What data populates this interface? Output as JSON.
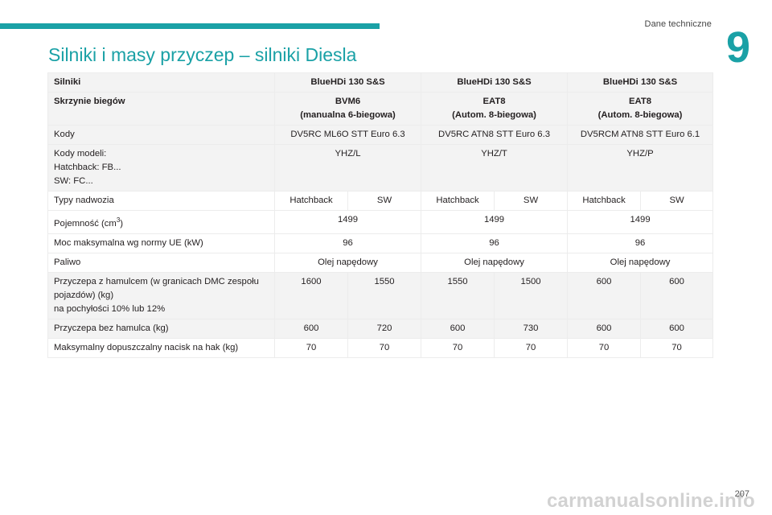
{
  "header": {
    "section_label": "Dane techniczne",
    "chapter_number": "9",
    "accent_color": "#1aa1a6"
  },
  "title": "Silniki i masy przyczep – silniki Diesla",
  "table": {
    "engines_label": "Silniki",
    "engines": [
      "BlueHDi 130 S&S",
      "BlueHDi 130 S&S",
      "BlueHDi 130 S&S"
    ],
    "gearbox_label": "Skrzynie biegów",
    "gearboxes": [
      {
        "name": "BVM6",
        "desc": "(manualna 6-biegowa)"
      },
      {
        "name": "EAT8",
        "desc": "(Autom. 8-biegowa)"
      },
      {
        "name": "EAT8",
        "desc": "(Autom. 8-biegowa)"
      }
    ],
    "codes_label": "Kody",
    "codes": [
      "DV5RC ML6O STT Euro 6.3",
      "DV5RC ATN8 STT Euro 6.3",
      "DV5RCM ATN8 STT Euro 6.1"
    ],
    "model_codes_label": [
      "Kody modeli:",
      "Hatchback: FB...",
      "SW: FC..."
    ],
    "model_codes": [
      "YHZ/L",
      "YHZ/T",
      "YHZ/P"
    ],
    "body_types_label": "Typy nadwozia",
    "body_types": [
      "Hatchback",
      "SW",
      "Hatchback",
      "SW",
      "Hatchback",
      "SW"
    ],
    "capacity_label": "Pojemność (cm",
    "capacity_sup": "3",
    "capacity_label_end": ")",
    "capacity": [
      "1499",
      "1499",
      "1499"
    ],
    "power_label": "Moc maksymalna wg normy UE (kW)",
    "power": [
      "96",
      "96",
      "96"
    ],
    "fuel_label": "Paliwo",
    "fuel": [
      "Olej napędowy",
      "Olej napędowy",
      "Olej napędowy"
    ],
    "braked_label": [
      "Przyczepa z hamulcem (w granicach DMC zespołu",
      "pojazdów) (kg)",
      "na pochyłości 10% lub 12%"
    ],
    "braked": [
      "1600",
      "1550",
      "1550",
      "1500",
      "600",
      "600"
    ],
    "unbraked_label": "Przyczepa bez hamulca (kg)",
    "unbraked": [
      "600",
      "720",
      "600",
      "730",
      "600",
      "600"
    ],
    "noseweight_label": "Maksymalny dopuszczalny nacisk na hak (kg)",
    "noseweight": [
      "70",
      "70",
      "70",
      "70",
      "70",
      "70"
    ]
  },
  "footer": {
    "page_number": "207",
    "watermark": "carmanualsonline.info"
  }
}
